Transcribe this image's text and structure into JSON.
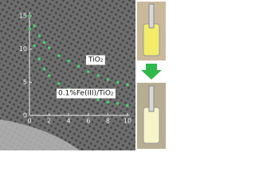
{
  "chart_data": {
    "type": "scatter",
    "xlim": [
      0,
      10
    ],
    "xticks": [
      0,
      2,
      4,
      6,
      8,
      10
    ],
    "ylim": [
      0,
      15
    ],
    "yticks": [
      0,
      5,
      10,
      15
    ],
    "series": [
      {
        "name": "TiO₂",
        "color": "#47d16a",
        "x": [
          0,
          0.5,
          1,
          1.5,
          2,
          3,
          4,
          5,
          6,
          7,
          8,
          9,
          10
        ],
        "values": [
          15,
          13.5,
          12,
          11,
          10.2,
          9,
          8.2,
          7.4,
          6.6,
          6,
          5.4,
          5,
          4.6
        ]
      },
      {
        "name": "0.1%Fe(III)/TiO₂",
        "color": "#47d16a",
        "x": [
          0,
          0.5,
          1,
          1.5,
          2,
          3,
          4,
          5,
          6,
          7,
          8,
          9,
          10
        ],
        "values": [
          13,
          10.5,
          8.5,
          7,
          6,
          4.8,
          4,
          3.4,
          2.8,
          2.4,
          2,
          1.8,
          1.5
        ]
      }
    ]
  }
}
